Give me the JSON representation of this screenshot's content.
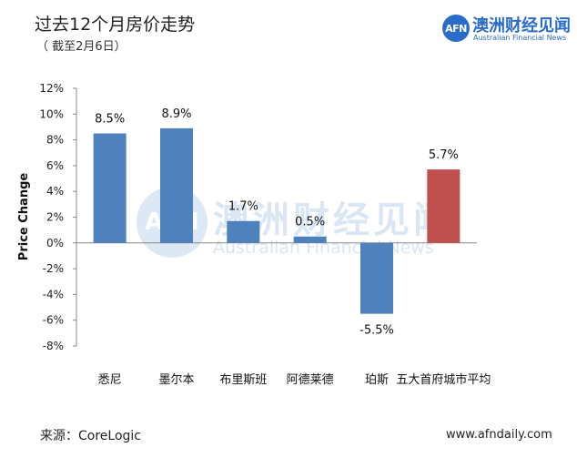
{
  "header": {
    "title": "过去12个月房价走势",
    "subtitle": "（ 截至2月6日）"
  },
  "logo": {
    "badge_text": "AFN",
    "name_cn": "澳洲财经见闻",
    "name_en": "Australian Financial News",
    "color": "#2a6cc9"
  },
  "watermark": {
    "badge_text": "AFN",
    "name_cn": "澳洲财经见闻",
    "name_en": "Australian Financial News"
  },
  "footer": {
    "source": "来源：CoreLogic",
    "website": "www.afndaily.com"
  },
  "chart_data": {
    "type": "bar",
    "title": "过去12个月房价走势",
    "ylabel": "Price Change",
    "xlabel": "",
    "categories": [
      "悉尼",
      "墨尔本",
      "布里斯班",
      "阿德莱德",
      "珀斯",
      "五大首府城市平均"
    ],
    "values": [
      8.5,
      8.9,
      1.7,
      0.5,
      -5.5,
      5.7
    ],
    "value_labels": [
      "8.5%",
      "8.9%",
      "1.7%",
      "0.5%",
      "-5.5%",
      "5.7%"
    ],
    "ylim": [
      -8,
      12
    ],
    "yticks": [
      "-8%",
      "-6%",
      "-4%",
      "-2%",
      "0%",
      "2%",
      "4%",
      "6%",
      "8%",
      "10%",
      "12%"
    ],
    "bar_colors": [
      "#4f81bd",
      "#4f81bd",
      "#4f81bd",
      "#4f81bd",
      "#4f81bd",
      "#c0504d"
    ],
    "grid": false,
    "legend": "none"
  }
}
